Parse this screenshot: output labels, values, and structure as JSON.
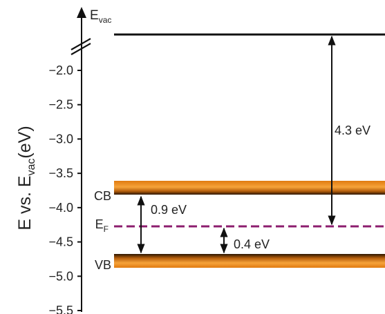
{
  "chart_data": {
    "type": "energy-level-diagram",
    "y_axis": {
      "label_main": "E vs. E",
      "label_sub": "vac",
      "label_unit": "(eV)",
      "ticks": [
        "-2.0",
        "-2.5",
        "-3.0",
        "-3.5",
        "-4.0",
        "-4.5",
        "-5.0",
        "-5.5"
      ],
      "tick_values": [
        -2.0,
        -2.5,
        -3.0,
        -3.5,
        -4.0,
        -4.5,
        -5.0,
        -5.5
      ],
      "range": [
        -5.5,
        -1.5
      ],
      "axis_break": true,
      "top_label_main": "E",
      "top_label_sub": "vac"
    },
    "levels": {
      "vacuum": {
        "value": 0.0
      },
      "cb": {
        "label": "CB",
        "value": -3.8
      },
      "vb": {
        "label": "VB",
        "value": -4.7
      },
      "fermi": {
        "label_main": "E",
        "label_sub": "F",
        "value": -4.3
      }
    },
    "annotations": {
      "bandgap": "0.9 eV",
      "fermi_to_vb": "0.4 eV",
      "work_function": "4.3 eV"
    },
    "colors": {
      "band": "#f39a2c",
      "band_edge": "#2b1500",
      "fermi_line": "#8c1d6e",
      "axis": "#111111",
      "text": "#222222"
    }
  }
}
